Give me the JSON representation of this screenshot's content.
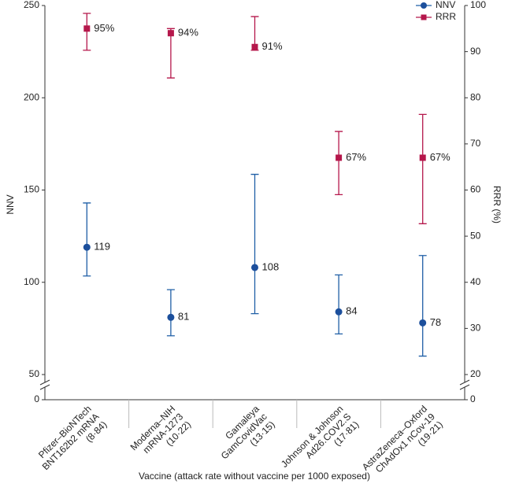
{
  "chart_data": {
    "type": "errorbar",
    "x_label": "Vaccine (attack rate without vaccine per 1000 exposed)",
    "y_label": "NNV",
    "y2_label": "RRR (%)",
    "categories": [
      [
        "Pfizer–BioNTech",
        "BNT162b2 mRNA",
        "(8·84)"
      ],
      [
        "Moderna–NIH",
        "mRNA-1273",
        "(10·22)"
      ],
      [
        "Gamaleya",
        "GamCovidVac",
        "(13·15)"
      ],
      [
        "Johnson & Johnson",
        "Ad26.COV2.S",
        "(17·81)"
      ],
      [
        "AstraZeneca–Oxford",
        "ChAdOx1 nCov-19",
        "(19·21)"
      ]
    ],
    "ylim": [
      0,
      250
    ],
    "yticks": [
      0,
      50,
      100,
      150,
      200,
      250
    ],
    "y_break": [
      0,
      50
    ],
    "y2lim": [
      0,
      100
    ],
    "y2ticks": [
      0,
      20,
      30,
      40,
      50,
      60,
      70,
      80,
      90,
      100
    ],
    "y2_break": [
      0,
      20
    ],
    "legend": "top-right",
    "series": [
      {
        "name": "NNV",
        "color": "#1f5fa6",
        "marker": "circle",
        "values": [
          119,
          81,
          108,
          84,
          78
        ],
        "low": [
          103.4,
          71,
          83,
          72,
          60
        ],
        "high": [
          143,
          96,
          158.5,
          104,
          114.5
        ]
      },
      {
        "name": "RRR",
        "color": "#b5174b",
        "marker": "square",
        "axis": "y2",
        "values": [
          95,
          94,
          91,
          67,
          67
        ],
        "value_labels": [
          "95%",
          "94%",
          "91%",
          "67%",
          "67%"
        ],
        "low": [
          90.3,
          84.3,
          90.3,
          59,
          52.7
        ],
        "high": [
          98.3,
          95,
          97.6,
          72.7,
          76.4
        ]
      }
    ]
  }
}
